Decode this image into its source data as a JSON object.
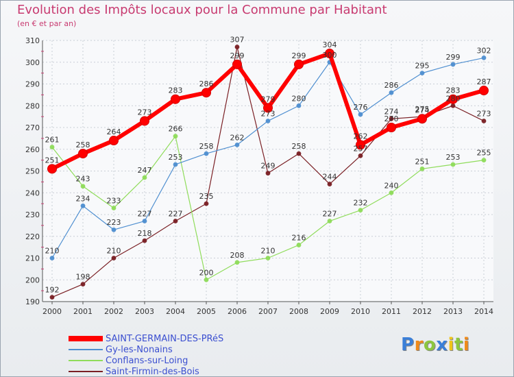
{
  "chart_data": {
    "type": "line",
    "title": "Evolution des Impôts locaux pour la Commune par Habitant",
    "subtitle": "(en € et par an)",
    "categories": [
      "2000",
      "2001",
      "2002",
      "2003",
      "2004",
      "2005",
      "2006",
      "2007",
      "2008",
      "2009",
      "2010",
      "2011",
      "2012",
      "2013",
      "2014"
    ],
    "ylim": [
      190,
      310
    ],
    "yticks": [
      190,
      200,
      210,
      220,
      230,
      240,
      250,
      260,
      270,
      280,
      290,
      300,
      310
    ],
    "grid": true,
    "legend_position": "bottom-left",
    "series": [
      {
        "name": "SAINT-GERMAIN-DES-PRéS",
        "color": "#ff0000",
        "values": [
          251,
          258,
          264,
          273,
          283,
          286,
          299,
          279,
          299,
          304,
          262,
          270,
          274,
          283,
          287
        ]
      },
      {
        "name": "Gy-les-Nonains",
        "color": "#4f8fd0",
        "values": [
          210,
          234,
          223,
          227,
          253,
          258,
          262,
          273,
          280,
          300,
          276,
          286,
          295,
          299,
          302
        ]
      },
      {
        "name": "Conflans-sur-Loing",
        "color": "#8fdc5a",
        "values": [
          261,
          243,
          233,
          247,
          266,
          200,
          208,
          210,
          216,
          227,
          232,
          240,
          251,
          253,
          255
        ]
      },
      {
        "name": "Saint-Firmin-des-Bois",
        "color": "#7a1f24",
        "values": [
          192,
          198,
          210,
          218,
          227,
          235,
          307,
          249,
          258,
          244,
          257,
          274,
          275,
          280,
          273
        ]
      }
    ]
  },
  "logo": {
    "letters": [
      "P",
      "r",
      "o",
      "x",
      "i",
      "t",
      "i"
    ],
    "colors": [
      "#3a7fd8",
      "#f08a1a",
      "#8cc63f",
      "#3a7fd8",
      "#f0c419",
      "#8cc63f",
      "#f08a1a"
    ]
  }
}
